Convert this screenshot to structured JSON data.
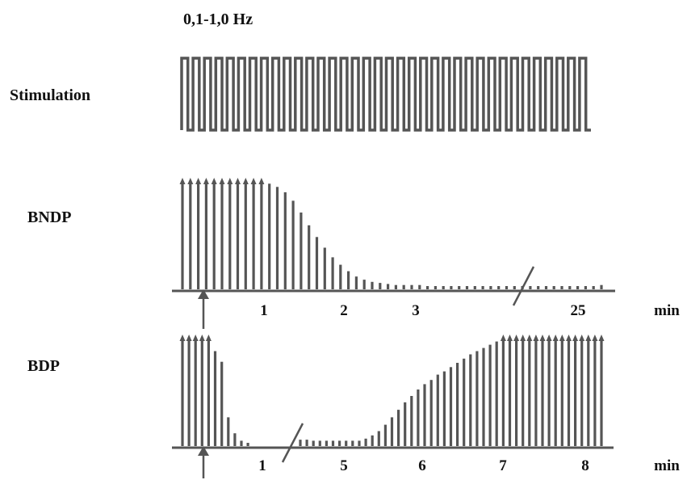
{
  "title": "0,1-1,0 Hz",
  "rows": {
    "stimulation": "Stimulation",
    "bndp": "BNDP",
    "bdp": "BDP"
  },
  "bndp_axis": {
    "ticks": [
      "1",
      "2",
      "3",
      "25"
    ],
    "unit": "min"
  },
  "bdp_axis": {
    "ticks": [
      "1",
      "5",
      "6",
      "7",
      "8"
    ],
    "unit": "min"
  },
  "chart_data": [
    {
      "type": "bar",
      "name": "BNDP",
      "x_ticks": [
        "1",
        "2",
        "3",
        "25"
      ],
      "xlabel": "min",
      "axis_break": "between 3 and 25",
      "relative_values": [
        1,
        1,
        1,
        1,
        1,
        1,
        1,
        1,
        1,
        1,
        1,
        0.99,
        0.96,
        0.91,
        0.83,
        0.72,
        0.6,
        0.49,
        0.39,
        0.3,
        0.23,
        0.17,
        0.12,
        0.09,
        0.07,
        0.06,
        0.05,
        0.04,
        0.04,
        0.04,
        0.04,
        0.03,
        0.03,
        0.03,
        0.03,
        0.03,
        0.03,
        0.03,
        0.03,
        0.03,
        0.03,
        0.03,
        0.03,
        0.03,
        0.03,
        0.03,
        0.03,
        0.03,
        0.03,
        0.03,
        0.03,
        0.03,
        0.03,
        0.04
      ]
    },
    {
      "type": "bar",
      "name": "BDP",
      "x_ticks": [
        "1",
        "5",
        "6",
        "7",
        "8"
      ],
      "xlabel": "min",
      "axis_break": "between 1 and 5",
      "relative_values": [
        1,
        1,
        1,
        1,
        1,
        0.89,
        0.79,
        0.27,
        0.12,
        0.05,
        0.03,
        0,
        0,
        0,
        0,
        0,
        0,
        0,
        0.06,
        0.06,
        0.05,
        0.05,
        0.05,
        0.05,
        0.05,
        0.05,
        0.05,
        0.05,
        0.07,
        0.1,
        0.14,
        0.2,
        0.27,
        0.34,
        0.41,
        0.47,
        0.53,
        0.58,
        0.62,
        0.67,
        0.7,
        0.74,
        0.78,
        0.82,
        0.86,
        0.89,
        0.92,
        0.95,
        0.98,
        1,
        1,
        1,
        1,
        1,
        1,
        1,
        1,
        1,
        1,
        1,
        1,
        1,
        1,
        1,
        1
      ]
    }
  ]
}
